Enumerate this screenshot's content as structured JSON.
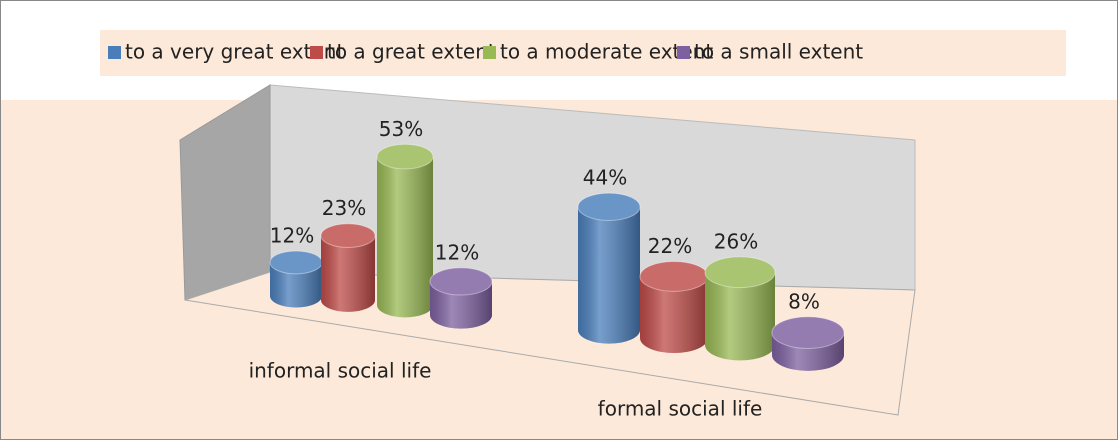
{
  "chart_data": {
    "type": "bar3d",
    "categories": [
      "informal social life",
      "formal social life"
    ],
    "series": [
      {
        "name": "to a very great extent",
        "color": "#4a7ebb",
        "values": [
          12,
          44
        ],
        "value_labels": [
          "12%",
          "44%"
        ]
      },
      {
        "name": "to a great extent",
        "color": "#be4b48",
        "values": [
          23,
          22
        ],
        "value_labels": [
          "23%",
          "22%"
        ]
      },
      {
        "name": "to a moderate extent",
        "color": "#98b954",
        "values": [
          53,
          26
        ],
        "value_labels": [
          "53%",
          "26%"
        ]
      },
      {
        "name": "to a small extent",
        "color": "#7d60a0",
        "values": [
          12,
          8
        ],
        "value_labels": [
          "12%",
          "8%"
        ]
      }
    ],
    "legend": "top"
  }
}
